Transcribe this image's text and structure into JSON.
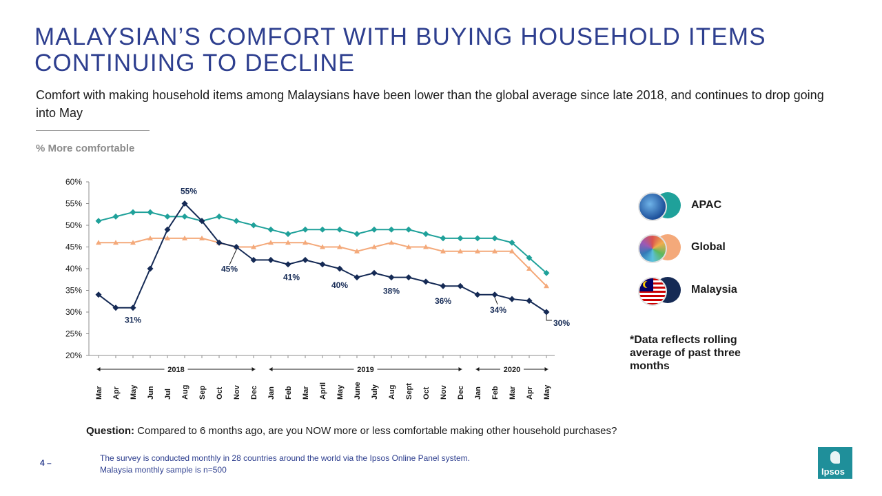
{
  "title": "MALAYSIAN’S COMFORT WITH BUYING HOUSEHOLD ITEMS CONTINUING TO DECLINE",
  "subtitle": "Comfort with making household items among Malaysians have been lower than the global average since late 2018, and continues to drop going into May",
  "unit_label": "% More comfortable",
  "legend": {
    "apac": "APAC",
    "global": "Global",
    "malaysia": "Malaysia"
  },
  "note": "*Data reflects rolling average of past three months",
  "question": {
    "label": "Question:",
    "text": "Compared to 6 months ago, are you NOW more or less comfortable making other household purchases?"
  },
  "footnote": {
    "line1": "The survey is conducted monthly in 28 countries around the world via the Ipsos Online Panel system.",
    "line2": "Malaysia monthly sample is n=500"
  },
  "page_number": "4 –",
  "logo_text": "Ipsos",
  "colors": {
    "title": "#2E3F8F",
    "apac": "#1FA19A",
    "global": "#F4A97A",
    "malaysia": "#152A55"
  },
  "chart_data": {
    "type": "line",
    "categories": [
      "Mar",
      "Apr",
      "May",
      "Jun",
      "Jul",
      "Aug",
      "Sep",
      "Oct",
      "Nov",
      "Dec",
      "Jan",
      "Feb",
      "Mar",
      "April",
      "May",
      "June",
      "July",
      "Aug",
      "Sept",
      "Oct",
      "Nov",
      "Dec",
      "Jan",
      "Feb",
      "Mar",
      "Apr",
      "May"
    ],
    "years": [
      {
        "label": "2018",
        "from": 0,
        "to": 9
      },
      {
        "label": "2019",
        "from": 10,
        "to": 21
      },
      {
        "label": "2020",
        "from": 22,
        "to": 26
      }
    ],
    "ylim": [
      20,
      60
    ],
    "yticks": [
      "20%",
      "25%",
      "30%",
      "35%",
      "40%",
      "45%",
      "50%",
      "55%",
      "60%"
    ],
    "series": [
      {
        "name": "APAC",
        "marker": "diamond",
        "values": [
          51,
          52,
          53,
          53,
          52,
          52,
          51,
          52,
          51,
          50,
          49,
          48,
          49,
          49,
          49,
          48,
          49,
          49,
          49,
          48,
          47,
          47,
          47,
          47,
          46,
          42.5,
          39
        ]
      },
      {
        "name": "Global",
        "marker": "triangle",
        "values": [
          46,
          46,
          46,
          47,
          47,
          47,
          47,
          46,
          45,
          45,
          46,
          46,
          46,
          45,
          45,
          44,
          45,
          46,
          45,
          45,
          44,
          44,
          44,
          44,
          44,
          40,
          36
        ]
      },
      {
        "name": "Malaysia",
        "marker": "diamond",
        "values": [
          34,
          31,
          31,
          40,
          49,
          55,
          51,
          46,
          45,
          42,
          42,
          41,
          42,
          41,
          40,
          38,
          39,
          38,
          38,
          37,
          36,
          36,
          34,
          34,
          33,
          32.6,
          30
        ]
      }
    ],
    "data_labels": [
      {
        "index": 2,
        "text": "31%"
      },
      {
        "index": 5,
        "text": "55%"
      },
      {
        "index": 8,
        "text": "45%"
      },
      {
        "index": 11,
        "text": "41%"
      },
      {
        "index": 14,
        "text": "40%"
      },
      {
        "index": 17,
        "text": "38%"
      },
      {
        "index": 20,
        "text": "36%"
      },
      {
        "index": 23,
        "text": "34%"
      },
      {
        "index": 26,
        "text": "30%"
      }
    ]
  }
}
